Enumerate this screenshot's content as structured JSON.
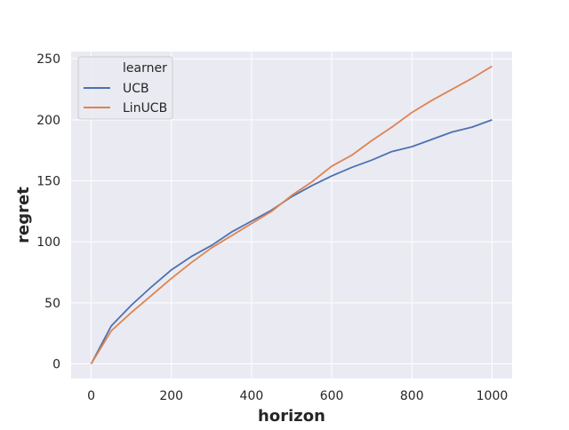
{
  "chart_data": {
    "type": "line",
    "title": "",
    "xlabel": "horizon",
    "ylabel": "regret",
    "xlim": [
      -50,
      1050
    ],
    "ylim": [
      -12,
      256
    ],
    "x_ticks": [
      0,
      200,
      400,
      600,
      800,
      1000
    ],
    "y_ticks": [
      0,
      50,
      100,
      150,
      200,
      250
    ],
    "x_tick_labels": [
      "0",
      "200",
      "400",
      "600",
      "800",
      "1000"
    ],
    "y_tick_labels": [
      "0",
      "50",
      "100",
      "150",
      "200",
      "250"
    ],
    "grid": true,
    "legend": {
      "title": "learner",
      "placement": "top-left"
    },
    "x": [
      0,
      50,
      100,
      150,
      200,
      250,
      300,
      350,
      400,
      450,
      500,
      550,
      600,
      650,
      700,
      750,
      800,
      850,
      900,
      950,
      1000
    ],
    "series": [
      {
        "name": "UCB",
        "color": "#4c72b0",
        "values": [
          0,
          31,
          48,
          63,
          77,
          88,
          97,
          108,
          117,
          126,
          137,
          146,
          154,
          161,
          167,
          174,
          178,
          184,
          190,
          194,
          200
        ]
      },
      {
        "name": "LinUCB",
        "color": "#dd8452",
        "values": [
          0,
          27,
          42,
          56,
          70,
          83,
          95,
          105,
          115,
          125,
          138,
          149,
          162,
          171,
          183,
          194,
          206,
          216,
          225,
          234,
          244
        ]
      }
    ]
  },
  "style": {
    "plot_background": "#eaeaf2",
    "grid_color": "#ffffff",
    "legend_background": "#eaeaf2",
    "legend_border": "#cccccc"
  }
}
